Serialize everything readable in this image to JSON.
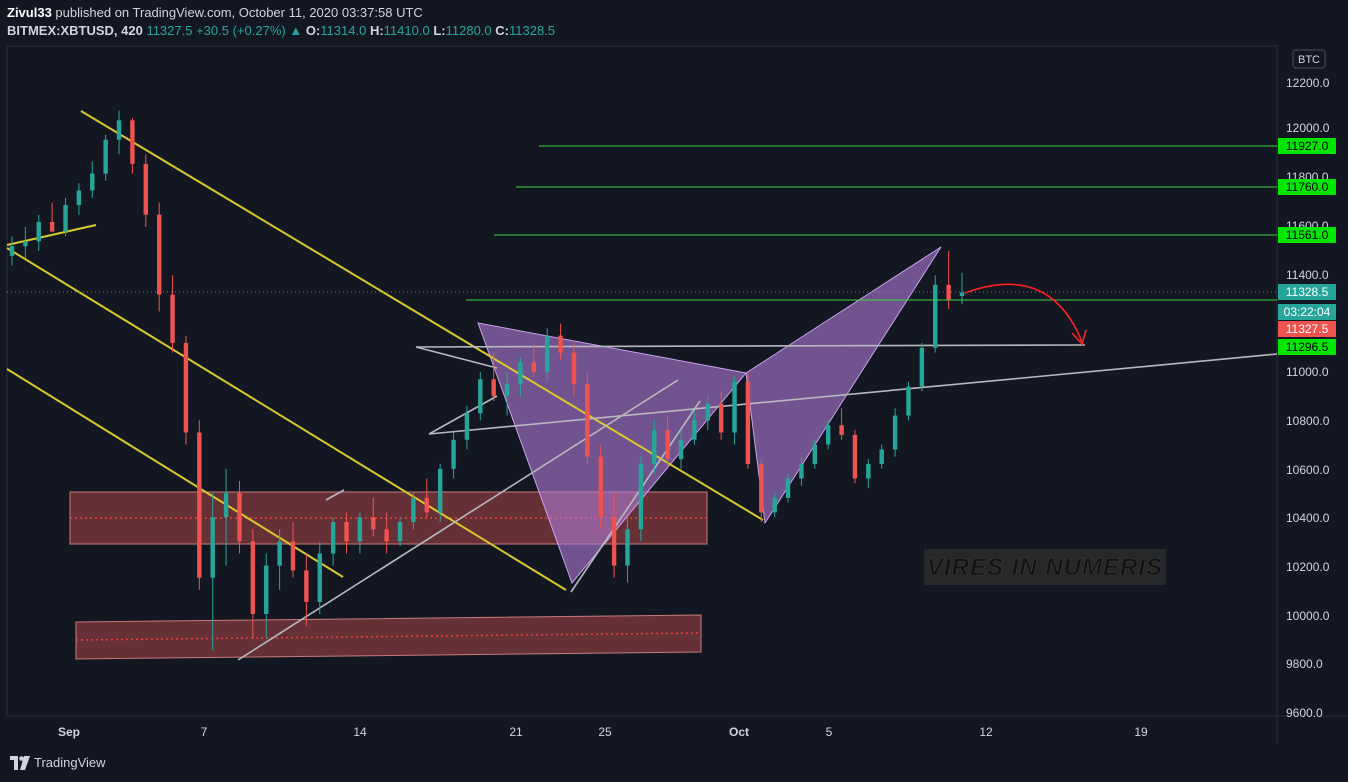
{
  "header": {
    "author": "Zivul33",
    "published_text": "published on TradingView.com, October 11, 2020 03:37:58 UTC",
    "symbol": "BITMEX:XBTUSD, 420",
    "last": "11327.5",
    "change": "+30.5 (+0.27%)",
    "change_arrow": "▲",
    "o_label": "O:",
    "o_value": "11314.0",
    "h_label": "H:",
    "h_value": "11410.0",
    "l_label": "L:",
    "l_value": "11280.0",
    "c_label": "C:",
    "c_value": "11328.5"
  },
  "footer": {
    "brand": "TradingView"
  },
  "chart_data": {
    "type": "candlestick",
    "currency_label": "BTC",
    "watermark": "VIRES IN NUMERIS",
    "y_axis": {
      "ticks": [
        "12200.0",
        "12000.0",
        "11800.0",
        "11600.0",
        "11400.0",
        "11000.0",
        "10800.0",
        "10600.0",
        "10400.0",
        "10200.0",
        "10000.0",
        "9800.0",
        "9600.0"
      ],
      "range": [
        9600,
        12300
      ]
    },
    "x_axis": {
      "ticks": [
        "Sep",
        "7",
        "14",
        "21",
        "25",
        "Oct",
        "5",
        "12",
        "19"
      ]
    },
    "price_labels": [
      {
        "value": "11927.0",
        "style": "green"
      },
      {
        "value": "11760.0",
        "style": "green"
      },
      {
        "value": "11561.0",
        "style": "green"
      },
      {
        "value": "11328.5",
        "style": "teal"
      },
      {
        "value": "03:22:04",
        "style": "teal"
      },
      {
        "value": "11327.5",
        "style": "red"
      },
      {
        "value": "11296.5",
        "style": "green"
      }
    ],
    "horizontal_levels": [
      11927,
      11760,
      11561,
      11296.5
    ],
    "current_price": 11328.5,
    "zones": [
      {
        "top": 10500,
        "bottom": 10300
      },
      {
        "top": 10000,
        "bottom": 9850
      }
    ],
    "candles_ohlc": [
      [
        11480,
        11560,
        11440,
        11520
      ],
      [
        11520,
        11600,
        11470,
        11540
      ],
      [
        11540,
        11650,
        11500,
        11620
      ],
      [
        11620,
        11700,
        11590,
        11580
      ],
      [
        11580,
        11720,
        11560,
        11690
      ],
      [
        11690,
        11780,
        11650,
        11750
      ],
      [
        11750,
        11870,
        11720,
        11820
      ],
      [
        11820,
        11980,
        11790,
        11960
      ],
      [
        11960,
        12080,
        11900,
        12040
      ],
      [
        12040,
        12050,
        11820,
        11860
      ],
      [
        11860,
        11900,
        11600,
        11650
      ],
      [
        11650,
        11700,
        11250,
        11320
      ],
      [
        11320,
        11400,
        11080,
        11120
      ],
      [
        11120,
        11150,
        10700,
        10750
      ],
      [
        10750,
        10800,
        10100,
        10150
      ],
      [
        10150,
        10500,
        9850,
        10400
      ],
      [
        10400,
        10600,
        10200,
        10500
      ],
      [
        10500,
        10550,
        10250,
        10300
      ],
      [
        10300,
        10350,
        9900,
        10000
      ],
      [
        10000,
        10250,
        9900,
        10200
      ],
      [
        10200,
        10350,
        10100,
        10300
      ],
      [
        10300,
        10380,
        10150,
        10180
      ],
      [
        10180,
        10250,
        9950,
        10050
      ],
      [
        10050,
        10300,
        10000,
        10250
      ],
      [
        10250,
        10400,
        10200,
        10380
      ],
      [
        10380,
        10420,
        10250,
        10300
      ],
      [
        10300,
        10420,
        10250,
        10400
      ],
      [
        10400,
        10480,
        10320,
        10350
      ],
      [
        10350,
        10420,
        10250,
        10300
      ],
      [
        10300,
        10400,
        10280,
        10380
      ],
      [
        10380,
        10500,
        10350,
        10480
      ],
      [
        10480,
        10560,
        10400,
        10420
      ],
      [
        10420,
        10620,
        10380,
        10600
      ],
      [
        10600,
        10750,
        10560,
        10720
      ],
      [
        10720,
        10860,
        10680,
        10830
      ],
      [
        10830,
        11000,
        10800,
        10970
      ],
      [
        10970,
        11080,
        10880,
        10900
      ],
      [
        10900,
        11000,
        10820,
        10950
      ],
      [
        10950,
        11060,
        10900,
        11040
      ],
      [
        11040,
        11120,
        10980,
        11000
      ],
      [
        11000,
        11180,
        10960,
        11150
      ],
      [
        11150,
        11200,
        11050,
        11080
      ],
      [
        11080,
        11120,
        10900,
        10950
      ],
      [
        10950,
        11000,
        10620,
        10650
      ],
      [
        10650,
        10700,
        10350,
        10400
      ],
      [
        10400,
        10500,
        10150,
        10200
      ],
      [
        10200,
        10400,
        10130,
        10350
      ],
      [
        10350,
        10650,
        10300,
        10620
      ],
      [
        10620,
        10800,
        10580,
        10760
      ],
      [
        10760,
        10820,
        10600,
        10640
      ],
      [
        10640,
        10760,
        10600,
        10720
      ],
      [
        10720,
        10840,
        10700,
        10800
      ],
      [
        10800,
        10900,
        10760,
        10870
      ],
      [
        10870,
        10920,
        10720,
        10750
      ],
      [
        10750,
        10980,
        10700,
        10960
      ],
      [
        10960,
        11000,
        10600,
        10620
      ],
      [
        10620,
        10640,
        10380,
        10420
      ],
      [
        10420,
        10500,
        10400,
        10480
      ],
      [
        10480,
        10580,
        10460,
        10560
      ],
      [
        10560,
        10650,
        10530,
        10620
      ],
      [
        10620,
        10720,
        10600,
        10700
      ],
      [
        10700,
        10800,
        10680,
        10780
      ],
      [
        10780,
        10850,
        10720,
        10740
      ],
      [
        10740,
        10760,
        10540,
        10560
      ],
      [
        10560,
        10640,
        10520,
        10620
      ],
      [
        10620,
        10700,
        10600,
        10680
      ],
      [
        10680,
        10850,
        10650,
        10820
      ],
      [
        10820,
        10960,
        10800,
        10940
      ],
      [
        10940,
        11120,
        10920,
        11100
      ],
      [
        11100,
        11400,
        11080,
        11360
      ],
      [
        11360,
        11500,
        11260,
        11300
      ],
      [
        11314,
        11410,
        11280,
        11328.5
      ]
    ],
    "indicative_series": true
  }
}
